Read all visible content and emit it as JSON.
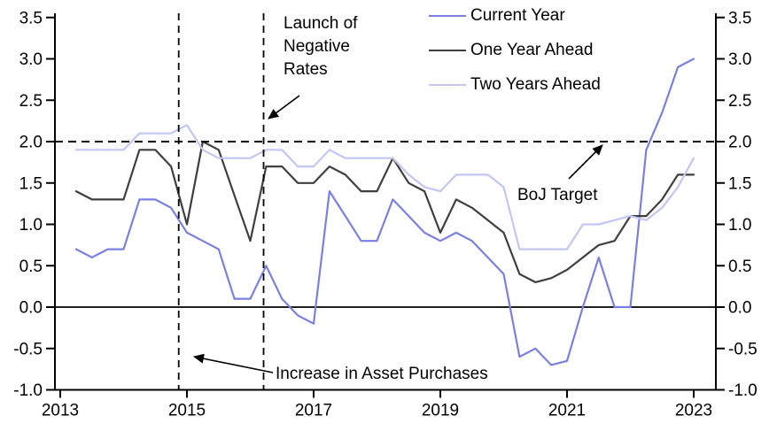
{
  "chart_data": {
    "type": "line",
    "x": [
      2013.25,
      2013.5,
      2013.75,
      2014.0,
      2014.25,
      2014.5,
      2014.75,
      2015.0,
      2015.25,
      2015.5,
      2015.75,
      2016.0,
      2016.25,
      2016.5,
      2016.75,
      2017.0,
      2017.25,
      2017.5,
      2017.75,
      2018.0,
      2018.25,
      2018.5,
      2018.75,
      2019.0,
      2019.25,
      2019.5,
      2019.75,
      2020.0,
      2020.25,
      2020.5,
      2020.75,
      2021.0,
      2021.25,
      2021.5,
      2021.75,
      2022.0,
      2022.25,
      2022.5,
      2022.75,
      2023.0
    ],
    "series": [
      {
        "name": "Current Year",
        "color": "#7b80e0",
        "values": [
          0.7,
          0.6,
          0.7,
          0.7,
          1.3,
          1.3,
          1.2,
          0.9,
          0.8,
          0.7,
          0.1,
          0.1,
          0.5,
          0.1,
          -0.1,
          -0.2,
          1.4,
          1.1,
          0.8,
          0.8,
          1.3,
          1.1,
          0.9,
          0.8,
          0.9,
          0.8,
          0.6,
          0.4,
          -0.6,
          -0.5,
          -0.7,
          -0.65,
          0.0,
          0.6,
          0.0,
          0.0,
          1.9,
          2.35,
          2.9,
          3.0
        ]
      },
      {
        "name": "One Year Ahead",
        "color": "#3f3f3f",
        "values": [
          1.4,
          1.3,
          1.3,
          1.3,
          1.9,
          1.9,
          1.7,
          1.0,
          2.0,
          1.9,
          1.35,
          0.8,
          1.7,
          1.7,
          1.5,
          1.5,
          1.7,
          1.6,
          1.4,
          1.4,
          1.8,
          1.5,
          1.4,
          0.9,
          1.3,
          1.2,
          1.05,
          0.9,
          0.4,
          0.3,
          0.35,
          0.45,
          0.6,
          0.75,
          0.8,
          1.1,
          1.1,
          1.3,
          1.6,
          1.6
        ]
      },
      {
        "name": "Two Years Ahead",
        "color": "#c3c6f3",
        "values": [
          1.9,
          1.9,
          1.9,
          1.9,
          2.1,
          2.1,
          2.1,
          2.2,
          1.9,
          1.8,
          1.8,
          1.8,
          1.9,
          1.9,
          1.7,
          1.7,
          1.9,
          1.8,
          1.8,
          1.8,
          1.8,
          1.6,
          1.45,
          1.4,
          1.6,
          1.6,
          1.6,
          1.45,
          0.7,
          0.7,
          0.7,
          0.7,
          1.0,
          1.0,
          1.05,
          1.1,
          1.05,
          1.2,
          1.45,
          1.8
        ]
      }
    ],
    "ylim": [
      -1.0,
      3.5
    ],
    "yticks": [
      3.5,
      3.0,
      2.5,
      2.0,
      1.5,
      1.0,
      0.5,
      0.0,
      -0.5,
      -1.0
    ],
    "xticks": [
      2013,
      2015,
      2017,
      2019,
      2021,
      2023
    ],
    "grid": false,
    "legend_position": "top-right-inside",
    "reference_lines": {
      "boj_target_value": 2.0,
      "zero_line_value": 0.0,
      "asset_purchases_year": 2014.87,
      "negative_rates_year": 2016.21
    }
  },
  "annotations": {
    "negative_rates": "Launch of\nNegative\nRates",
    "asset_purchases": "Increase in Asset Purchases",
    "boj_target": "BoJ Target"
  },
  "colors": {
    "axis": "#000000",
    "background": "#ffffff"
  }
}
